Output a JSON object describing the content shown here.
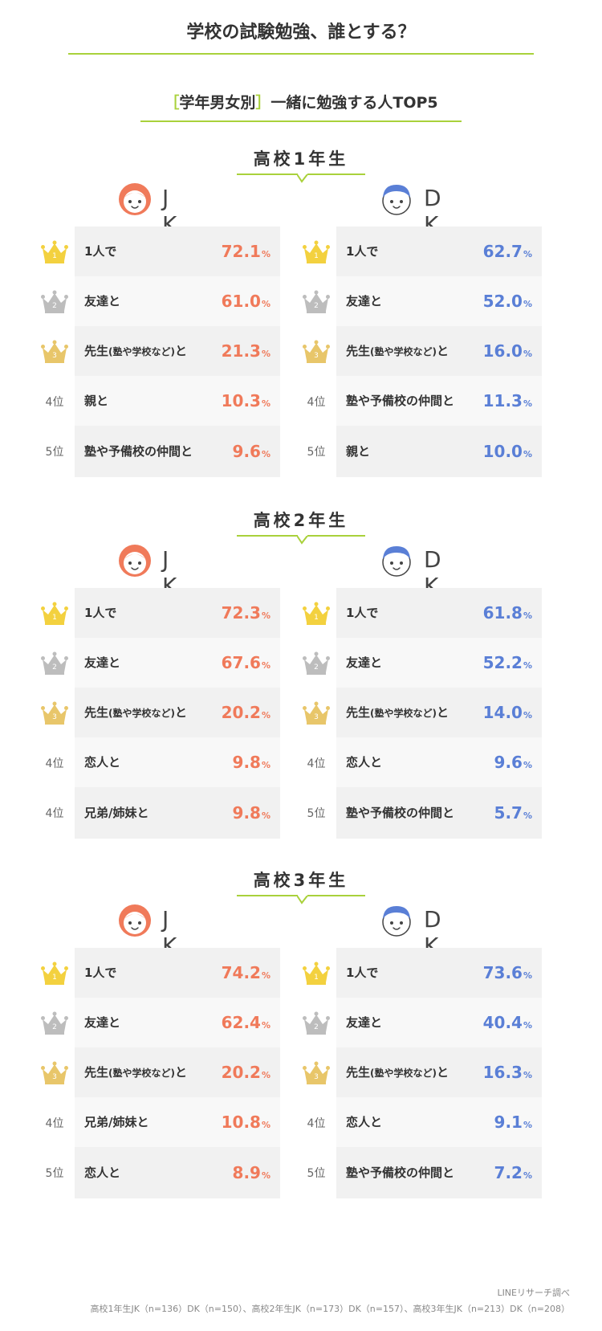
{
  "title": "学校の試験勉強、誰とする？",
  "subtitle": {
    "open": "［",
    "bracketed": "学年男女別",
    "close": "］",
    "rest": "一緒に勉強する人TOP5"
  },
  "colors": {
    "accent": "#a9d13b",
    "jk": "#f07a5a",
    "dk": "#5a7fd6",
    "gold": "#f3d13f",
    "silver": "#bdbdbd",
    "bronze": "#e8c66a"
  },
  "chart_data": {
    "type": "table",
    "title": "［学年男女別］一緒に勉強する人TOP5",
    "unit": "%",
    "grades": [
      {
        "name": "高校1年生",
        "jk": {
          "label": "J K",
          "rows": [
            {
              "rank": "1",
              "item": "1人で",
              "value": 72.1
            },
            {
              "rank": "2",
              "item": "友達と",
              "value": 61.0
            },
            {
              "rank": "3",
              "item": "先生",
              "note": "(塾や学校など)",
              "suffix": "と",
              "value": 21.3
            },
            {
              "rank": "4位",
              "item": "親と",
              "value": 10.3
            },
            {
              "rank": "5位",
              "item": "塾や予備校の仲間と",
              "value": 9.6
            }
          ]
        },
        "dk": {
          "label": "D K",
          "rows": [
            {
              "rank": "1",
              "item": "1人で",
              "value": 62.7
            },
            {
              "rank": "2",
              "item": "友達と",
              "value": 52.0
            },
            {
              "rank": "3",
              "item": "先生",
              "note": "(塾や学校など)",
              "suffix": "と",
              "value": 16.0
            },
            {
              "rank": "4位",
              "item": "塾や予備校の仲間と",
              "value": 11.3
            },
            {
              "rank": "5位",
              "item": "親と",
              "value": 10.0
            }
          ]
        }
      },
      {
        "name": "高校2年生",
        "jk": {
          "label": "J K",
          "rows": [
            {
              "rank": "1",
              "item": "1人で",
              "value": 72.3
            },
            {
              "rank": "2",
              "item": "友達と",
              "value": 67.6
            },
            {
              "rank": "3",
              "item": "先生",
              "note": "(塾や学校など)",
              "suffix": "と",
              "value": 20.2
            },
            {
              "rank": "4位",
              "item": "恋人と",
              "value": 9.8
            },
            {
              "rank": "4位",
              "item": "兄弟/姉妹と",
              "value": 9.8
            }
          ]
        },
        "dk": {
          "label": "D K",
          "rows": [
            {
              "rank": "1",
              "item": "1人で",
              "value": 61.8
            },
            {
              "rank": "2",
              "item": "友達と",
              "value": 52.2
            },
            {
              "rank": "3",
              "item": "先生",
              "note": "(塾や学校など)",
              "suffix": "と",
              "value": 14.0
            },
            {
              "rank": "4位",
              "item": "恋人と",
              "value": 9.6
            },
            {
              "rank": "5位",
              "item": "塾や予備校の仲間と",
              "value": 5.7
            }
          ]
        }
      },
      {
        "name": "高校3年生",
        "jk": {
          "label": "J K",
          "rows": [
            {
              "rank": "1",
              "item": "1人で",
              "value": 74.2
            },
            {
              "rank": "2",
              "item": "友達と",
              "value": 62.4
            },
            {
              "rank": "3",
              "item": "先生",
              "note": "(塾や学校など)",
              "suffix": "と",
              "value": 20.2
            },
            {
              "rank": "4位",
              "item": "兄弟/姉妹と",
              "value": 10.8
            },
            {
              "rank": "5位",
              "item": "恋人と",
              "value": 8.9
            }
          ]
        },
        "dk": {
          "label": "D K",
          "rows": [
            {
              "rank": "1",
              "item": "1人で",
              "value": 73.6
            },
            {
              "rank": "2",
              "item": "友達と",
              "value": 40.4
            },
            {
              "rank": "3",
              "item": "先生",
              "note": "(塾や学校など)",
              "suffix": "と",
              "value": 16.3
            },
            {
              "rank": "4位",
              "item": "恋人と",
              "value": 9.1
            },
            {
              "rank": "5位",
              "item": "塾や予備校の仲間と",
              "value": 7.2
            }
          ]
        }
      }
    ]
  },
  "footer": {
    "source": "LINEリサーチ調べ",
    "sample": "高校1年生JK（n=136）DK（n=150）、高校2年生JK（n=173）DK（n=157）、高校3年生JK（n=213）DK（n=208）"
  }
}
